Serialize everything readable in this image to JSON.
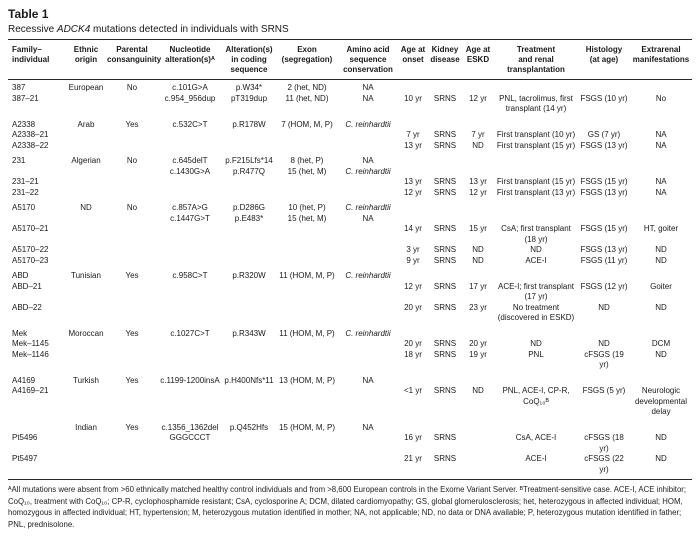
{
  "title": "Table 1",
  "subtitle": {
    "prefix": "Recessive ",
    "gene": "ADCK4",
    "suffix": " mutations detected in individuals with SRNS"
  },
  "table": {
    "columns": [
      {
        "label": "Family–\nindividual",
        "align": "left"
      },
      {
        "label": "Ethnic\norigin"
      },
      {
        "label": "Parental\nconsanguinity"
      },
      {
        "label": "Nucleotide\nalteration(s)ᴬ"
      },
      {
        "label": "Alteration(s)\nin coding\nsequence"
      },
      {
        "label": "Exon\n(segregation)"
      },
      {
        "label": "Amino acid\nsequence\nconservation"
      },
      {
        "label": "Age at\nonset"
      },
      {
        "label": "Kidney\ndisease"
      },
      {
        "label": "Age at\nESKD"
      },
      {
        "label": "Treatment\nand renal\ntransplantation"
      },
      {
        "label": "Histology\n(at age)"
      },
      {
        "label": "Extrarenal\nmanifestations"
      }
    ],
    "italic_values": [
      "C. reinhardtii"
    ],
    "rows": [
      {
        "group_start": true,
        "first": true,
        "cells": [
          "387",
          "European",
          "No",
          "c.101G>A",
          "p.W34*",
          "2 (het, ND)",
          "NA",
          "",
          "",
          "",
          "",
          "",
          ""
        ]
      },
      {
        "cells": [
          "387–21",
          "",
          "",
          "c.954_956dup",
          "pT319dup",
          "11 (het, ND)",
          "NA",
          "10 yr",
          "SRNS",
          "12 yr",
          "PNL, tacrolimus, first transplant (14 yr)",
          "FSGS (10 yr)",
          "No"
        ]
      },
      {
        "group_start": true,
        "cells": [
          "A2338",
          "Arab",
          "Yes",
          "c.532C>T",
          "p.R178W",
          "7 (HOM, M, P)",
          "C. reinhardtii",
          "",
          "",
          "",
          "",
          "",
          ""
        ]
      },
      {
        "cells": [
          "A2338–21",
          "",
          "",
          "",
          "",
          "",
          "",
          "7 yr",
          "SRNS",
          "7 yr",
          "First transplant (10 yr)",
          "GS (7 yr)",
          "NA"
        ]
      },
      {
        "cells": [
          "A2338–22",
          "",
          "",
          "",
          "",
          "",
          "",
          "13 yr",
          "SRNS",
          "ND",
          "First transplant (15 yr)",
          "FSGS (13 yr)",
          "NA"
        ]
      },
      {
        "group_start": true,
        "cells": [
          "231",
          "Algerian",
          "No",
          "c.645delT",
          "p.F215Lfs*14",
          "8 (het, P)",
          "NA",
          "",
          "",
          "",
          "",
          "",
          ""
        ]
      },
      {
        "cells": [
          "",
          "",
          "",
          "c.1430G>A",
          "p.R477Q",
          "15 (het, M)",
          "C. reinhardtii",
          "",
          "",
          "",
          "",
          "",
          ""
        ]
      },
      {
        "cells": [
          "231–21",
          "",
          "",
          "",
          "",
          "",
          "",
          "13 yr",
          "SRNS",
          "13 yr",
          "First transplant (15 yr)",
          "FSGS (15 yr)",
          "NA"
        ]
      },
      {
        "cells": [
          "231–22",
          "",
          "",
          "",
          "",
          "",
          "",
          "12 yr",
          "SRNS",
          "12 yr",
          "First transplant (13 yr)",
          "FSGS (13 yr)",
          "NA"
        ]
      },
      {
        "group_start": true,
        "cells": [
          "A5170",
          "ND",
          "No",
          "c.857A>G",
          "p.D286G",
          "10 (het, P)",
          "C. reinhardtii",
          "",
          "",
          "",
          "",
          "",
          ""
        ]
      },
      {
        "cells": [
          "",
          "",
          "",
          "c.1447G>T",
          "p.E483*",
          "15 (het, M)",
          "NA",
          "",
          "",
          "",
          "",
          "",
          ""
        ]
      },
      {
        "cells": [
          "A5170–21",
          "",
          "",
          "",
          "",
          "",
          "",
          "14 yr",
          "SRNS",
          "15 yr",
          "CsA; first transplant (18 yr)",
          "FSGS (15 yr)",
          "HT, goiter"
        ]
      },
      {
        "cells": [
          "A5170–22",
          "",
          "",
          "",
          "",
          "",
          "",
          "3 yr",
          "SRNS",
          "ND",
          "ND",
          "FSGS (13 yr)",
          "ND"
        ]
      },
      {
        "cells": [
          "A5170–23",
          "",
          "",
          "",
          "",
          "",
          "",
          "9 yr",
          "SRNS",
          "ND",
          "ACE-I",
          "FSGS (11 yr)",
          "ND"
        ]
      },
      {
        "group_start": true,
        "cells": [
          "ABD",
          "Tunisian",
          "Yes",
          "c.958C>T",
          "p.R320W",
          "11 (HOM, M, P)",
          "C. reinhardtii",
          "",
          "",
          "",
          "",
          "",
          ""
        ]
      },
      {
        "cells": [
          "ABD–21",
          "",
          "",
          "",
          "",
          "",
          "",
          "12 yr",
          "SRNS",
          "17 yr",
          "ACE-I; first transplant (17 yr)",
          "FSGS (12 yr)",
          "Goiter"
        ]
      },
      {
        "cells": [
          "ABD–22",
          "",
          "",
          "",
          "",
          "",
          "",
          "20 yr",
          "SRNS",
          "23 yr",
          "No treatment (discovered in ESKD)",
          "ND",
          "ND"
        ]
      },
      {
        "group_start": true,
        "cells": [
          "Mek",
          "Moroccan",
          "Yes",
          "c.1027C>T",
          "p.R343W",
          "11 (HOM, M, P)",
          "C. reinhardtii",
          "",
          "",
          "",
          "",
          "",
          ""
        ]
      },
      {
        "cells": [
          "Mek–1145",
          "",
          "",
          "",
          "",
          "",
          "",
          "20 yr",
          "SRNS",
          "20 yr",
          "ND",
          "ND",
          "DCM"
        ]
      },
      {
        "cells": [
          "Mek–1146",
          "",
          "",
          "",
          "",
          "",
          "",
          "18 yr",
          "SRNS",
          "19 yr",
          "PNL",
          "cFSGS (19 yr)",
          "ND"
        ]
      },
      {
        "group_start": true,
        "cells": [
          "A4169",
          "Turkish",
          "Yes",
          "c.1199-1200insA",
          "p.H400Nfs*11",
          "13 (HOM, M, P)",
          "NA",
          "",
          "",
          "",
          "",
          "",
          ""
        ]
      },
      {
        "cells": [
          "A4169–21",
          "",
          "",
          "",
          "",
          "",
          "",
          "<1 yr",
          "SRNS",
          "ND",
          "PNL, ACE-I, CP-R, CoQ₁₀ᴮ",
          "FSGS (5 yr)",
          "Neurologic developmental delay"
        ]
      },
      {
        "group_start": true,
        "cells": [
          "",
          "Indian",
          "Yes",
          "c.1356_1362del",
          "p.Q452Hfs",
          "15 (HOM, M, P)",
          "NA",
          "",
          "",
          "",
          "",
          "",
          ""
        ]
      },
      {
        "cells": [
          "Pt5496",
          "",
          "",
          "GGGCCCT",
          "",
          "",
          "",
          "16 yr",
          "SRNS",
          "",
          "CsA, ACE-I",
          "cFSGS (18 yr)",
          "ND"
        ]
      },
      {
        "cells": [
          "Pt5497",
          "",
          "",
          "",
          "",
          "",
          "",
          "21 yr",
          "SRNS",
          "",
          "ACE-I",
          "cFSGS (22 yr)",
          "ND"
        ]
      }
    ]
  },
  "footnote": "ᴬAll mutations were absent from >60 ethnically matched healthy control individuals and from >8,600 European controls in the Exome Variant Server. ᴮTreatment-sensitive case. ACE-I, ACE inhibitor; CoQ₁₀, treatment with CoQ₁₀; CP-R, cyclophosphamide resistant; CsA, cyclosporine A; DCM, dilated cardiomyopathy; GS, global glomerulosclerosis; het, heterozygous in affected individual; HOM, homozygous in affected individual; HT, hypertension; M, heterozygous mutation identified in mother; NA, not applicable; ND, no data or DNA available; P, heterozygous mutation identified in father; PNL, prednisolone."
}
